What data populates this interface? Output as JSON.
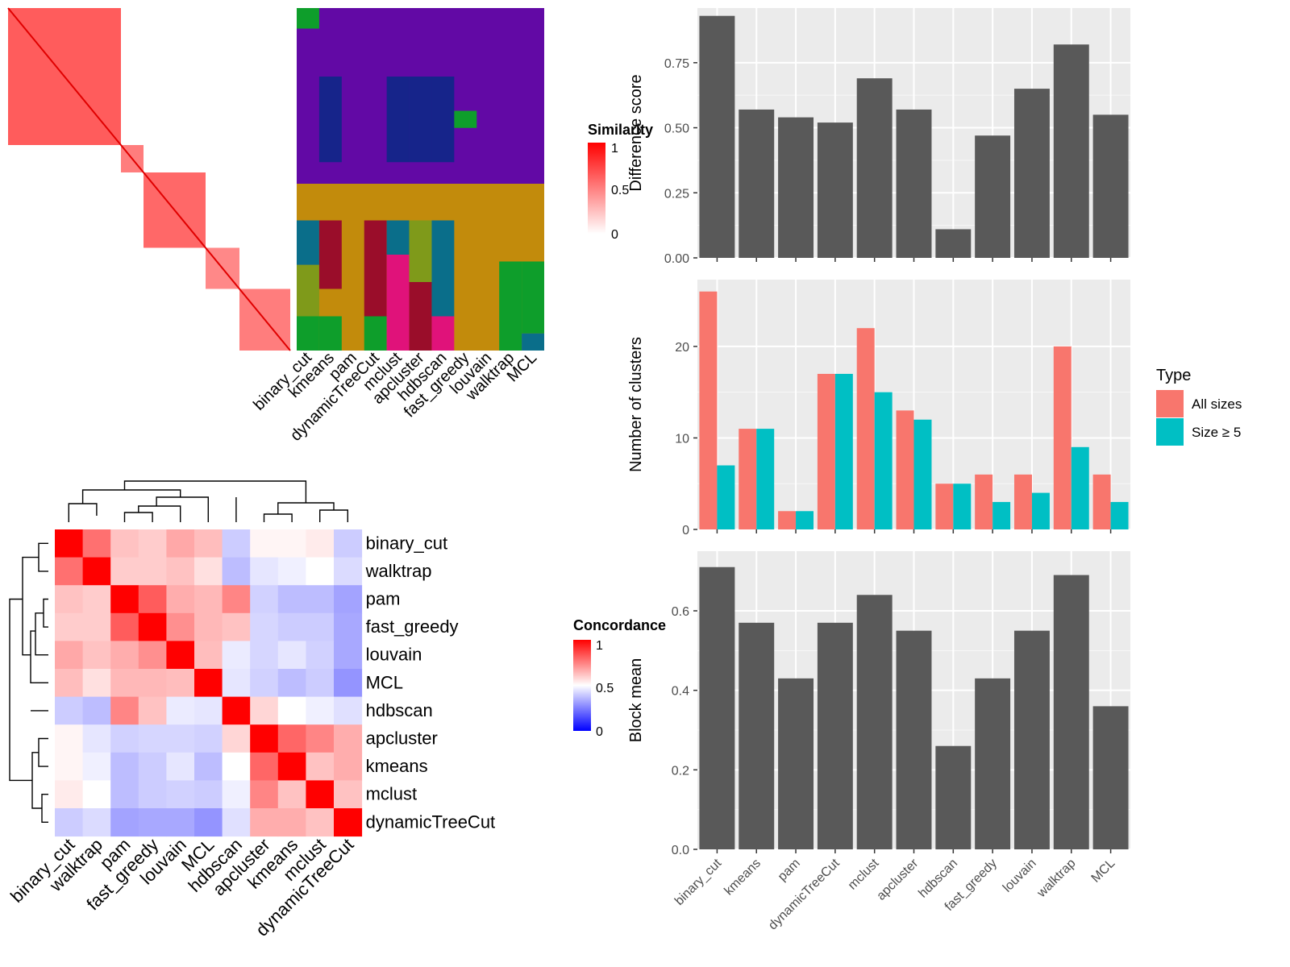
{
  "methods_order_top": [
    "binary_cut",
    "kmeans",
    "pam",
    "dynamicTreeCut",
    "mclust",
    "apcluster",
    "hdbscan",
    "fast_greedy",
    "louvain",
    "walktrap",
    "MCL"
  ],
  "similarity_legend": {
    "title": "Similarity",
    "ticks": [
      "1",
      "0.5",
      "0"
    ],
    "colors": [
      "#ffffff",
      "#ff0000"
    ]
  },
  "concordance_legend": {
    "title": "Concordance",
    "ticks": [
      "1",
      "0.5",
      "0"
    ],
    "colors": [
      "#0000ff",
      "#ffffff",
      "#ff0000"
    ]
  },
  "chart_data": [
    {
      "type": "heatmap",
      "title": "",
      "description": "",
      "legend": "Similarity",
      "blocks": [
        {
          "from": 0.0,
          "to": 0.4,
          "value": 0.75
        },
        {
          "from": 0.4,
          "to": 0.48,
          "value": 0.6
        },
        {
          "from": 0.48,
          "to": 0.7,
          "value": 0.7
        },
        {
          "from": 0.7,
          "to": 0.82,
          "value": 0.55
        },
        {
          "from": 0.82,
          "to": 1.0,
          "value": 0.6
        }
      ]
    },
    {
      "type": "heatmap",
      "title": "",
      "x": [
        "binary_cut",
        "kmeans",
        "pam",
        "dynamicTreeCut",
        "mclust",
        "apcluster",
        "hdbscan",
        "fast_greedy",
        "louvain",
        "walktrap",
        "MCL"
      ],
      "y": [
        "binary_cut",
        "walktrap",
        "pam",
        "fast_greedy",
        "louvain",
        "MCL",
        "hdbscan",
        "apcluster",
        "kmeans",
        "mclust",
        "dynamicTreeCut"
      ],
      "legend": "Concordance"
    },
    {
      "type": "heatmap",
      "title": "",
      "x": [
        "binary_cut",
        "walktrap",
        "pam",
        "fast_greedy",
        "louvain",
        "MCL",
        "hdbscan",
        "apcluster",
        "kmeans",
        "mclust",
        "dynamicTreeCut"
      ],
      "y": [
        "binary_cut",
        "walktrap",
        "pam",
        "fast_greedy",
        "louvain",
        "MCL",
        "hdbscan",
        "apcluster",
        "kmeans",
        "mclust",
        "dynamicTreeCut"
      ],
      "values": [
        [
          1.0,
          0.78,
          0.62,
          0.6,
          0.67,
          0.63,
          0.4,
          0.52,
          0.52,
          0.54,
          0.4
        ],
        [
          0.78,
          1.0,
          0.6,
          0.6,
          0.62,
          0.56,
          0.37,
          0.45,
          0.47,
          0.5,
          0.43
        ],
        [
          0.62,
          0.6,
          1.0,
          0.82,
          0.66,
          0.64,
          0.74,
          0.41,
          0.37,
          0.37,
          0.32
        ],
        [
          0.6,
          0.6,
          0.82,
          1.0,
          0.72,
          0.64,
          0.62,
          0.42,
          0.4,
          0.4,
          0.33
        ],
        [
          0.67,
          0.62,
          0.66,
          0.72,
          1.0,
          0.63,
          0.46,
          0.42,
          0.45,
          0.41,
          0.33
        ],
        [
          0.63,
          0.56,
          0.64,
          0.64,
          0.63,
          1.0,
          0.45,
          0.41,
          0.37,
          0.4,
          0.29
        ],
        [
          0.4,
          0.37,
          0.74,
          0.62,
          0.46,
          0.45,
          1.0,
          0.58,
          0.5,
          0.47,
          0.44
        ],
        [
          0.52,
          0.45,
          0.41,
          0.42,
          0.42,
          0.41,
          0.58,
          1.0,
          0.8,
          0.74,
          0.66
        ],
        [
          0.52,
          0.47,
          0.37,
          0.4,
          0.45,
          0.37,
          0.5,
          0.8,
          1.0,
          0.62,
          0.66
        ],
        [
          0.54,
          0.5,
          0.37,
          0.4,
          0.41,
          0.4,
          0.47,
          0.74,
          0.62,
          1.0,
          0.62
        ],
        [
          0.4,
          0.43,
          0.32,
          0.33,
          0.33,
          0.29,
          0.44,
          0.66,
          0.66,
          0.62,
          1.0
        ]
      ],
      "legend": "Concordance"
    },
    {
      "type": "bar",
      "title": "",
      "categories": [
        "binary_cut",
        "kmeans",
        "pam",
        "dynamicTreeCut",
        "mclust",
        "apcluster",
        "hdbscan",
        "fast_greedy",
        "louvain",
        "walktrap",
        "MCL"
      ],
      "values": [
        0.93,
        0.57,
        0.54,
        0.52,
        0.69,
        0.57,
        0.11,
        0.47,
        0.65,
        0.82,
        0.55
      ],
      "xlabel": "",
      "ylabel": "Difference score",
      "ylim": [
        0,
        0.96
      ],
      "yticks": [
        "0.00",
        "0.25",
        "0.50",
        "0.75"
      ],
      "grid": true
    },
    {
      "type": "bar",
      "title": "",
      "categories": [
        "binary_cut",
        "kmeans",
        "pam",
        "dynamicTreeCut",
        "mclust",
        "apcluster",
        "hdbscan",
        "fast_greedy",
        "louvain",
        "walktrap",
        "MCL"
      ],
      "series": [
        {
          "name": "All sizes",
          "color": "#f8766d",
          "values": [
            26,
            11,
            2,
            17,
            22,
            13,
            5,
            6,
            6,
            20,
            6
          ]
        },
        {
          "name": "Size ≥ 5",
          "color": "#00bfc4",
          "values": [
            7,
            11,
            2,
            17,
            15,
            12,
            5,
            3,
            4,
            9,
            3
          ]
        }
      ],
      "xlabel": "",
      "ylabel": "Number of clusters",
      "ylim": [
        0,
        27.3
      ],
      "yticks": [
        "0",
        "10",
        "20"
      ],
      "legend_title": "Type",
      "legend_position": "right",
      "grid": true
    },
    {
      "type": "bar",
      "title": "",
      "categories": [
        "binary_cut",
        "kmeans",
        "pam",
        "dynamicTreeCut",
        "mclust",
        "apcluster",
        "hdbscan",
        "fast_greedy",
        "louvain",
        "walktrap",
        "MCL"
      ],
      "values": [
        0.71,
        0.57,
        0.43,
        0.57,
        0.64,
        0.55,
        0.26,
        0.43,
        0.55,
        0.69,
        0.36
      ],
      "xlabel": "",
      "ylabel": "Block mean",
      "ylim": [
        0,
        0.75
      ],
      "yticks": [
        "0.0",
        "0.2",
        "0.4",
        "0.6"
      ],
      "grid": true
    }
  ]
}
